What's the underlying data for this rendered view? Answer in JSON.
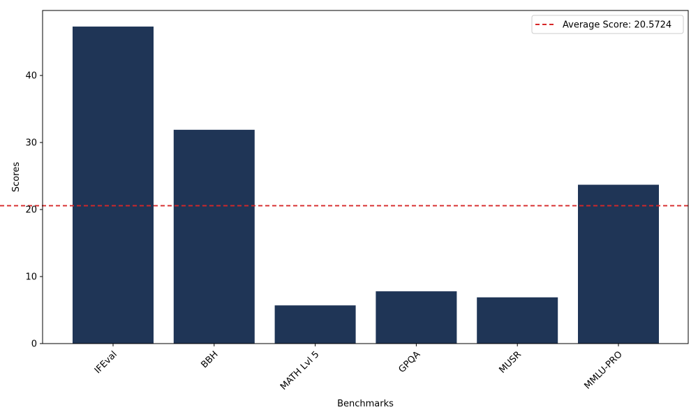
{
  "chart_data": {
    "type": "bar",
    "categories": [
      "IFEval",
      "BBH",
      "MATH Lvl 5",
      "GPQA",
      "MUSR",
      "MMLU-PRO"
    ],
    "values": [
      47.3,
      31.9,
      5.7,
      7.8,
      6.9,
      23.7
    ],
    "xlabel": "Benchmarks",
    "ylabel": "Scores",
    "ylim": [
      0,
      49.7
    ],
    "yticks": [
      0,
      10,
      20,
      30,
      40
    ],
    "grid": false,
    "bar_color": "#1f3556",
    "average": {
      "value": 20.5724,
      "label": "Average Score: 20.5724",
      "color": "#d62728",
      "style": "dashed"
    },
    "legend_placement": "top-right"
  }
}
